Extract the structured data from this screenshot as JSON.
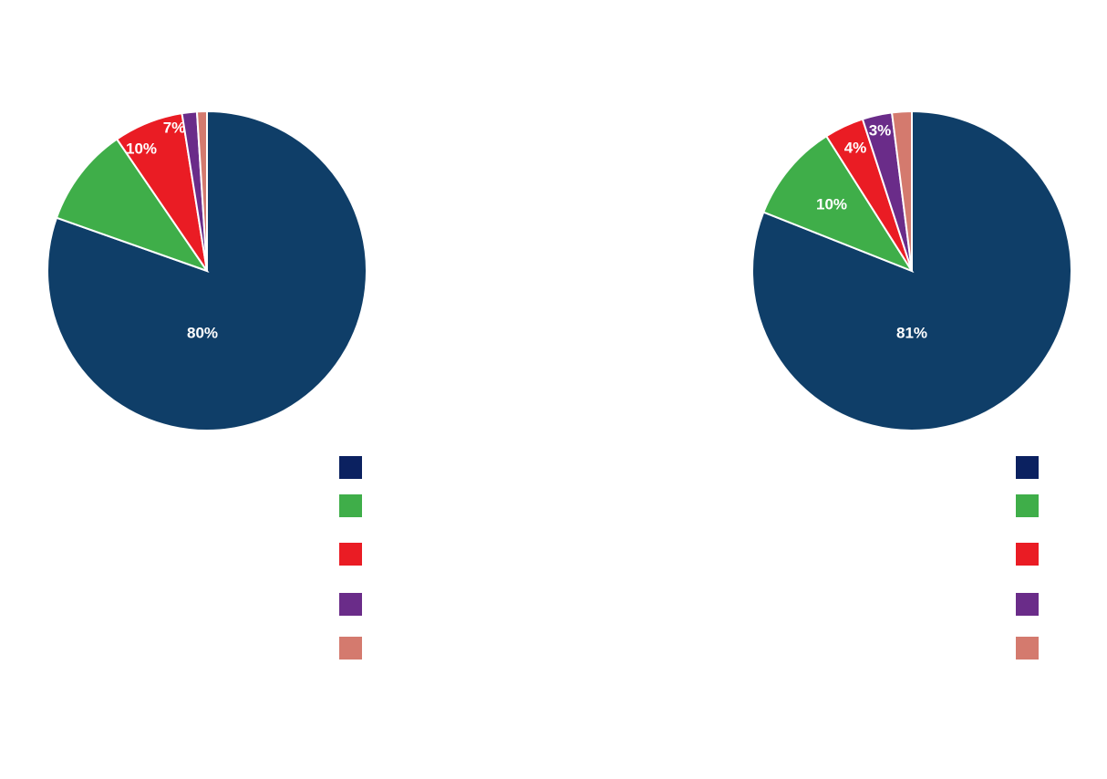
{
  "chart_data": [
    {
      "type": "pie",
      "title": "",
      "start_angle_deg": 0,
      "direction": "clockwise",
      "series": [
        {
          "value": 80,
          "color": "#0f3e68",
          "label": "80%"
        },
        {
          "value": 10,
          "color": "#3fae49",
          "label": "10%"
        },
        {
          "value": 7,
          "color": "#ea1c24",
          "label": "7%"
        },
        {
          "value": 1.5,
          "color": "#6a2c89",
          "label": ""
        },
        {
          "value": 1,
          "color": "#d47a6e",
          "label": ""
        }
      ],
      "legend": {
        "placement": "bottom-right",
        "swatch_colors": [
          "#0b2160",
          "#3fae49",
          "#ea1c24",
          "#6a2c89",
          "#d47a6e"
        ]
      }
    },
    {
      "type": "pie",
      "title": "",
      "start_angle_deg": 0,
      "direction": "clockwise",
      "series": [
        {
          "value": 81,
          "color": "#0f3e68",
          "label": "81%"
        },
        {
          "value": 10,
          "color": "#3fae49",
          "label": "10%"
        },
        {
          "value": 4,
          "color": "#ea1c24",
          "label": "4%"
        },
        {
          "value": 3,
          "color": "#6a2c89",
          "label": "3%"
        },
        {
          "value": 2,
          "color": "#d47a6e",
          "label": ""
        }
      ],
      "legend": {
        "placement": "bottom-right",
        "swatch_colors": [
          "#0b2160",
          "#3fae49",
          "#ea1c24",
          "#6a2c89",
          "#d47a6e"
        ]
      }
    }
  ]
}
